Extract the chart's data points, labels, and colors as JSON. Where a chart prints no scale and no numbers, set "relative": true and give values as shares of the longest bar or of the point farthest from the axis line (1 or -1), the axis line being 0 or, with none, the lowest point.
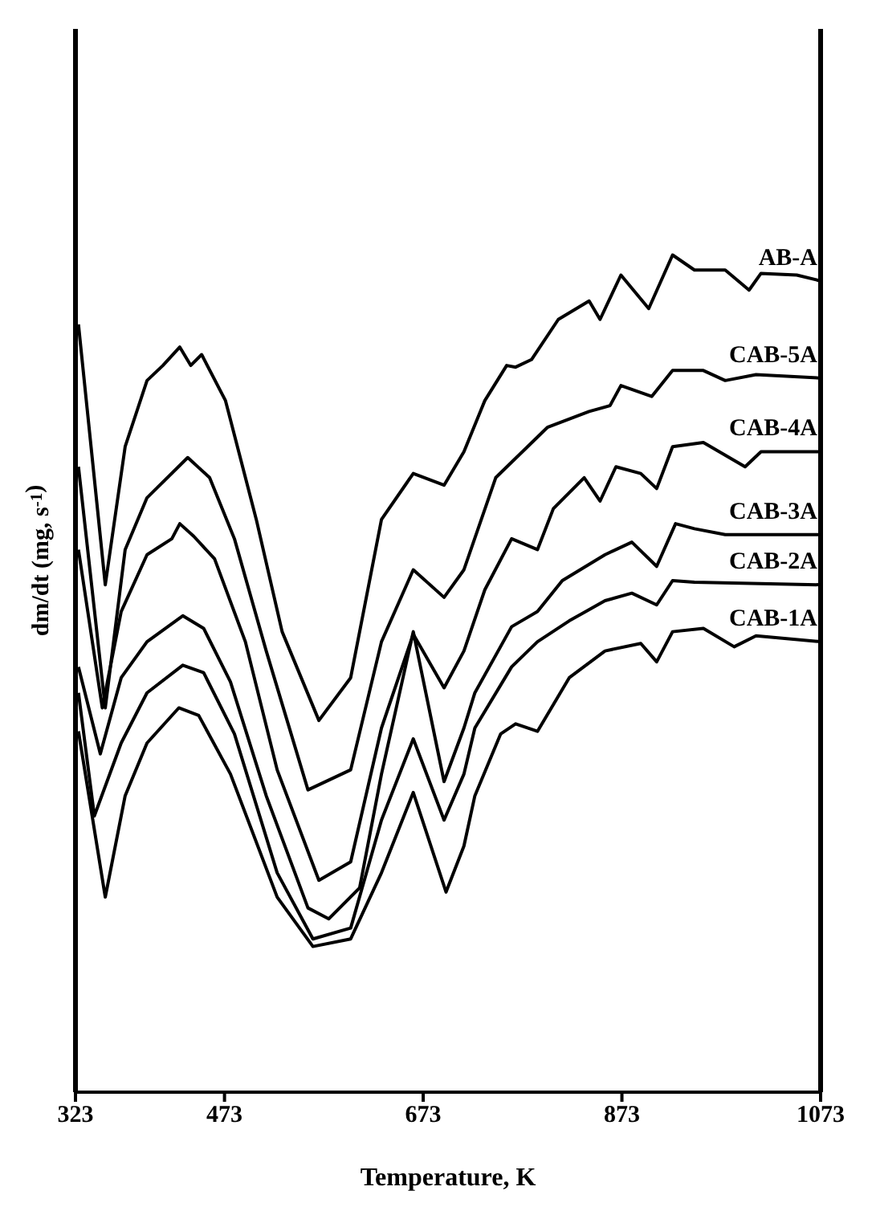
{
  "chart_data": {
    "type": "line",
    "relative": true,
    "xlabel": "Temperature, K",
    "ylabel": "dm/dt (mg, s$^{-1}$)",
    "xlim": [
      323,
      1073
    ],
    "xticks": [
      323,
      473,
      673,
      873,
      1073
    ],
    "marker": "none",
    "line_style": "solid",
    "series": [
      {
        "name": "AB-A",
        "color": "#000000",
        "x": [
          326,
          353,
          373,
          395,
          411,
          428,
          439,
          450,
          474,
          505,
          531,
          568,
          600,
          631,
          663,
          694,
          714,
          735,
          757,
          766,
          782,
          809,
          840,
          851,
          872,
          900,
          924,
          946,
          977,
          1001,
          1013,
          1049,
          1073
        ],
        "values": [
          0.917,
          0.606,
          0.771,
          0.85,
          0.868,
          0.89,
          0.868,
          0.881,
          0.826,
          0.684,
          0.55,
          0.444,
          0.495,
          0.684,
          0.739,
          0.725,
          0.765,
          0.826,
          0.868,
          0.866,
          0.875,
          0.923,
          0.945,
          0.923,
          0.976,
          0.936,
          1,
          0.982,
          0.982,
          0.958,
          0.978,
          0.976,
          0.969
        ]
      },
      {
        "name": "CAB-5A",
        "color": "#000000",
        "x": [
          326,
          353,
          373,
          395,
          436,
          458,
          483,
          515,
          557,
          600,
          631,
          663,
          694,
          714,
          746,
          798,
          840,
          861,
          872,
          903,
          924,
          955,
          977,
          1008,
          1073
        ],
        "values": [
          0.747,
          0.459,
          0.648,
          0.71,
          0.758,
          0.734,
          0.661,
          0.527,
          0.361,
          0.385,
          0.538,
          0.624,
          0.591,
          0.624,
          0.734,
          0.794,
          0.813,
          0.82,
          0.844,
          0.831,
          0.862,
          0.862,
          0.85,
          0.857,
          0.853
        ]
      },
      {
        "name": "CAB-4A",
        "color": "#000000",
        "x": [
          326,
          350,
          369,
          395,
          420,
          428,
          442,
          463,
          494,
          526,
          568,
          600,
          631,
          663,
          694,
          714,
          735,
          762,
          788,
          804,
          835,
          851,
          867,
          892,
          908,
          924,
          955,
          997,
          1013,
          1073
        ],
        "values": [
          0.648,
          0.459,
          0.574,
          0.642,
          0.661,
          0.679,
          0.664,
          0.637,
          0.538,
          0.385,
          0.253,
          0.275,
          0.435,
          0.547,
          0.483,
          0.527,
          0.6,
          0.661,
          0.648,
          0.697,
          0.734,
          0.706,
          0.747,
          0.739,
          0.721,
          0.771,
          0.776,
          0.747,
          0.765,
          0.765
        ]
      },
      {
        "name": "CAB-3A",
        "color": "#000000",
        "x": [
          326,
          348,
          369,
          395,
          431,
          452,
          479,
          515,
          557,
          578,
          609,
          631,
          663,
          694,
          714,
          725,
          762,
          788,
          813,
          856,
          883,
          908,
          927,
          946,
          977,
          1073
        ],
        "values": [
          0.508,
          0.404,
          0.495,
          0.538,
          0.569,
          0.554,
          0.49,
          0.354,
          0.22,
          0.207,
          0.244,
          0.38,
          0.55,
          0.371,
          0.435,
          0.477,
          0.556,
          0.574,
          0.611,
          0.642,
          0.657,
          0.628,
          0.679,
          0.673,
          0.666,
          0.666
        ]
      },
      {
        "name": "CAB-2A",
        "color": "#000000",
        "x": [
          326,
          342,
          369,
          395,
          431,
          452,
          483,
          526,
          562,
          600,
          631,
          663,
          694,
          714,
          725,
          762,
          788,
          820,
          856,
          883,
          908,
          924,
          946,
          1073
        ],
        "values": [
          0.477,
          0.33,
          0.417,
          0.477,
          0.51,
          0.501,
          0.428,
          0.262,
          0.183,
          0.196,
          0.325,
          0.422,
          0.325,
          0.38,
          0.435,
          0.508,
          0.538,
          0.563,
          0.587,
          0.596,
          0.582,
          0.611,
          0.609,
          0.606
        ]
      },
      {
        "name": "CAB-1A",
        "color": "#000000",
        "x": [
          326,
          353,
          373,
          395,
          427,
          447,
          479,
          526,
          562,
          600,
          631,
          663,
          696,
          714,
          725,
          751,
          766,
          788,
          820,
          856,
          892,
          908,
          924,
          955,
          986,
          1008,
          1073
        ],
        "values": [
          0.431,
          0.233,
          0.354,
          0.417,
          0.459,
          0.45,
          0.38,
          0.233,
          0.174,
          0.183,
          0.262,
          0.358,
          0.239,
          0.294,
          0.354,
          0.428,
          0.44,
          0.431,
          0.495,
          0.527,
          0.536,
          0.514,
          0.55,
          0.554,
          0.532,
          0.545,
          0.538
        ]
      }
    ]
  }
}
